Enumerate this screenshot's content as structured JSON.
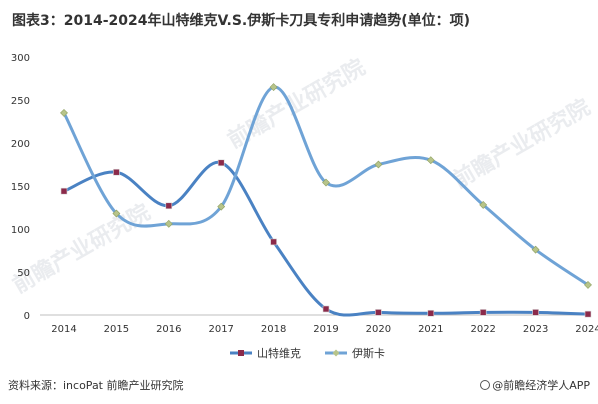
{
  "header": {
    "title": "图表3：2014-2024年山特维克V.S.伊斯卡刀具专利申请趋势(单位：项)"
  },
  "footer": {
    "source": "资料来源：incoPat 前瞻产业研究院",
    "brand": "@前瞻经济学人APP"
  },
  "watermark": {
    "text": "前瞻产业研究院"
  },
  "chart_data": {
    "type": "line",
    "title": "图表3：2014-2024年山特维克V.S.伊斯卡刀具专利申请趋势(单位：项)",
    "x": [
      "2014",
      "2015",
      "2016",
      "2017",
      "2018",
      "2019",
      "2020",
      "2021",
      "2022",
      "2023",
      "2024"
    ],
    "y_ticks": [
      "0",
      "50",
      "100",
      "150",
      "200",
      "250",
      "300"
    ],
    "ylim": [
      0,
      300
    ],
    "smooth": true,
    "grid": false,
    "legend_position": "bottom",
    "series": [
      {
        "name": "山特维克",
        "color": "#4a82c3",
        "marker": "square",
        "marker_color": "#8b2a4a",
        "values": [
          144,
          166,
          127,
          177,
          85,
          7,
          3,
          2,
          3,
          3,
          1
        ]
      },
      {
        "name": "伊斯卡",
        "color": "#6fa3d6",
        "marker": "diamond",
        "marker_color": "#b7c48a",
        "values": [
          235,
          118,
          106,
          126,
          265,
          154,
          175,
          180,
          128,
          76,
          35
        ]
      }
    ]
  }
}
